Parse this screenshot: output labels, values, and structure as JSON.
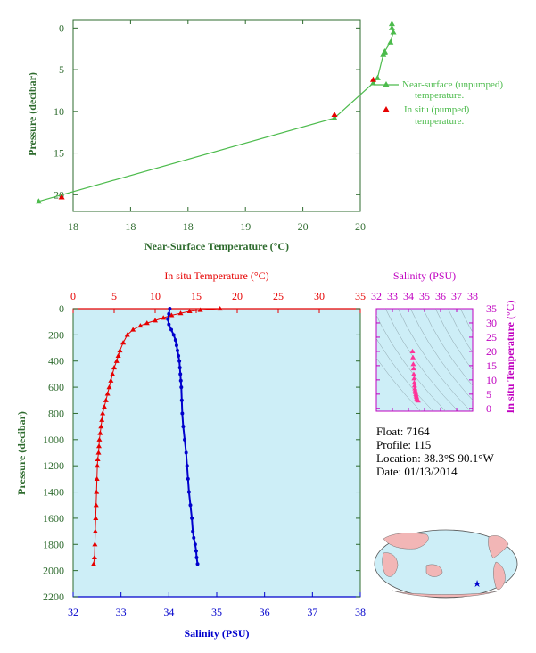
{
  "colors": {
    "axis_green": "#2e6b2e",
    "series_green": "#4cbb4c",
    "insitu_red": "#e60000",
    "salinity_blue": "#0000cc",
    "magenta": "#c000c0",
    "pink_points": "#ff3399",
    "panel_bg": "#cdeef7",
    "land": "#f2b6b6",
    "ocean": "#cdeef7"
  },
  "info": {
    "float": "Float:  7164",
    "profile": "Profile:  115",
    "location": "Location:  38.3°S  90.1°W",
    "date": "Date:  01/13/2014"
  },
  "chart_data": [
    {
      "id": "near_surface",
      "type": "line",
      "xlabel": "Near-Surface Temperature (°C)",
      "ylabel": "Pressure (decibar)",
      "xlim": [
        18,
        20
      ],
      "ylim": [
        22,
        -1
      ],
      "xticks": [
        "18",
        "18",
        "18",
        "19",
        "20",
        "20"
      ],
      "yticks": [
        "0",
        "5",
        "10",
        "15",
        "20"
      ],
      "legend": {
        "placement": "right",
        "entries": [
          "Near-surface (unpumped)",
          "temperature.",
          "In situ (pumped)",
          "temperature."
        ]
      },
      "series": [
        {
          "name": "Near-surface (unpumped) temperature.",
          "x": [
            20.22,
            20.22,
            20.23,
            20.21,
            20.17,
            20.17,
            20.16,
            20.12,
            20.09,
            19.82,
            17.76
          ],
          "y": [
            -0.5,
            0.0,
            0.5,
            1.7,
            2.8,
            3.0,
            3.2,
            6.0,
            6.6,
            10.8,
            20.8
          ]
        },
        {
          "name": "In situ (pumped) temperature.",
          "x": [
            20.09,
            19.82,
            17.92
          ],
          "y": [
            6.2,
            10.4,
            20.3
          ]
        }
      ]
    },
    {
      "id": "profile",
      "type": "line",
      "xlabel": "Salinity (PSU)",
      "top_xlabel": "In situ Temperature (°C)",
      "ylabel": "Pressure (decibar)",
      "xlim": [
        32,
        38
      ],
      "top_xlim": [
        0,
        35
      ],
      "ylim": [
        2200,
        0
      ],
      "xticks": [
        "32",
        "33",
        "34",
        "35",
        "36",
        "37",
        "38"
      ],
      "top_xticks": [
        "0",
        "5",
        "10",
        "15",
        "20",
        "25",
        "30",
        "35"
      ],
      "yticks": [
        "0",
        "200",
        "400",
        "600",
        "800",
        "1000",
        "1200",
        "1400",
        "1600",
        "1800",
        "2000",
        "2200"
      ],
      "series": [
        {
          "name": "In situ Temperature (°C)",
          "x": [
            17.9,
            15.5,
            14.2,
            13.1,
            12.0,
            11.0,
            10.0,
            9.0,
            8.2,
            7.3,
            6.6,
            6.1,
            5.7,
            5.5,
            5.3,
            5.0,
            4.8,
            4.6,
            4.4,
            4.2,
            4.0,
            3.8,
            3.6,
            3.5,
            3.4,
            3.3,
            3.2,
            3.15,
            3.1,
            3.0,
            2.95,
            2.9,
            2.85,
            2.8,
            2.75,
            2.7,
            2.65,
            2.6,
            2.5
          ],
          "y": [
            0,
            10,
            20,
            35,
            50,
            70,
            90,
            110,
            130,
            160,
            200,
            260,
            320,
            360,
            400,
            450,
            500,
            550,
            600,
            650,
            700,
            750,
            800,
            850,
            900,
            950,
            1000,
            1050,
            1100,
            1150,
            1200,
            1300,
            1400,
            1500,
            1600,
            1700,
            1800,
            1900,
            1950
          ]
        },
        {
          "name": "Salinity (PSU)",
          "x": [
            34.02,
            34.0,
            33.98,
            34.0,
            34.05,
            34.1,
            34.14,
            34.16,
            34.18,
            34.2,
            34.22,
            34.23,
            34.24,
            34.25,
            34.26,
            34.27,
            34.28,
            34.3,
            34.33,
            34.36,
            34.38,
            34.4,
            34.42,
            34.45,
            34.48,
            34.5,
            34.52,
            34.55,
            34.57,
            34.58,
            34.6
          ],
          "y": [
            0,
            40,
            80,
            120,
            160,
            200,
            240,
            280,
            320,
            360,
            400,
            450,
            500,
            550,
            600,
            700,
            800,
            900,
            1000,
            1100,
            1200,
            1300,
            1400,
            1500,
            1600,
            1700,
            1750,
            1800,
            1850,
            1900,
            1950
          ]
        }
      ]
    },
    {
      "id": "ts_diagram",
      "type": "scatter",
      "title": "Salinity (PSU)",
      "ylabel": "In situ Temperature (°C)",
      "xlim": [
        32,
        38
      ],
      "ylim": [
        -1,
        35
      ],
      "xticks": [
        "32",
        "33",
        "34",
        "35",
        "36",
        "37",
        "38"
      ],
      "yticks": [
        "0",
        "5",
        "10",
        "15",
        "20",
        "25",
        "30",
        "35"
      ],
      "series": [
        {
          "name": "T-S points",
          "x": [
            34.25,
            34.28,
            34.3,
            34.32,
            34.33,
            34.35,
            34.36,
            34.38,
            34.4,
            34.42,
            34.44,
            34.46,
            34.48,
            34.5,
            34.52,
            34.55,
            34.57,
            34.6
          ],
          "y": [
            20.0,
            17.9,
            15.5,
            14.0,
            12.0,
            10.5,
            9.0,
            8.0,
            7.0,
            6.3,
            5.7,
            5.0,
            4.5,
            4.0,
            3.5,
            3.2,
            2.9,
            2.7
          ]
        }
      ]
    }
  ]
}
